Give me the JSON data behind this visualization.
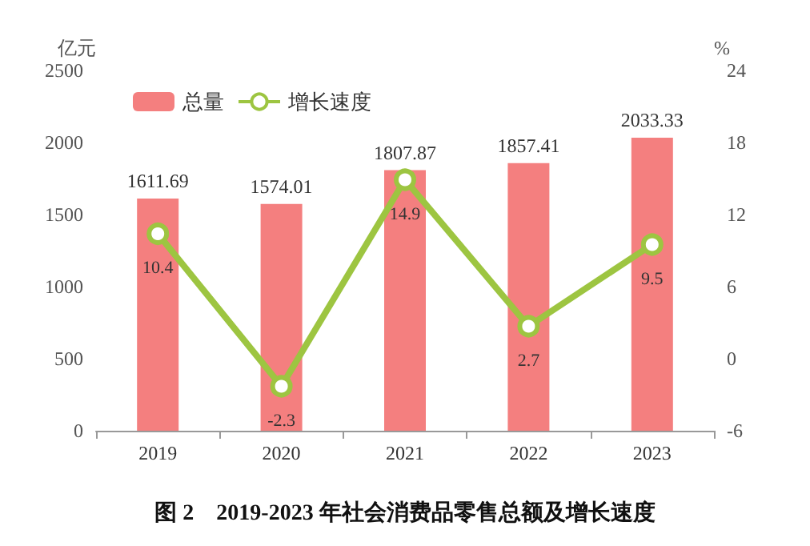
{
  "chart_data": {
    "type": "bar",
    "title": "图 2　2019-2023 年社会消费品零售总额及增长速度",
    "ylabel": "亿元",
    "y2label": "%",
    "categories": [
      "2019",
      "2020",
      "2021",
      "2022",
      "2023"
    ],
    "series": [
      {
        "name": "总量",
        "color": "#f47f7f",
        "values": [
          1611.69,
          1574.01,
          1807.87,
          1857.41,
          2033.33
        ]
      },
      {
        "name": "增长速度",
        "type": "line",
        "axis": "y2",
        "color": "#9dc541",
        "marker": "circle",
        "values": [
          10.4,
          -2.3,
          14.9,
          2.7,
          9.5
        ]
      }
    ],
    "ylim": [
      0,
      2500
    ],
    "yticks": [
      0,
      500,
      1000,
      1500,
      2000,
      2500
    ],
    "y2lim": [
      -6,
      24
    ],
    "y2ticks": [
      -6,
      0,
      6,
      12,
      18,
      24
    ],
    "data_labels": true,
    "legend": "top left",
    "grid": false
  }
}
